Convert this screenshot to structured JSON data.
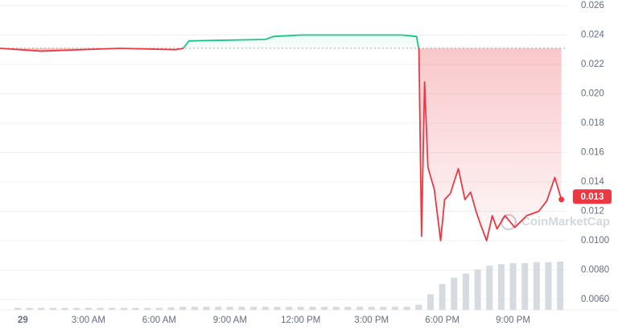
{
  "chart_data": {
    "type": "line",
    "x": [
      -0.75,
      0.99,
      4.36,
      6.68,
      7.02,
      7.26,
      10.5,
      10.84,
      12,
      16.3,
      16.91,
      17.01,
      17.12,
      17.25,
      17.39,
      17.66,
      17.93,
      18.1,
      18.34,
      18.68,
      18.96,
      19.2,
      19.43,
      19.6,
      19.88,
      20.12,
      20.32,
      20.66,
      21.07,
      21.58,
      22.09,
      22.43,
      22.77,
      23.05
    ],
    "values": [
      0.0231,
      0.0229,
      0.0231,
      0.023,
      0.0231,
      0.0236,
      0.0237,
      0.0239,
      0.024,
      0.024,
      0.0239,
      0.023,
      0.0103,
      0.0208,
      0.015,
      0.0135,
      0.01,
      0.0128,
      0.0132,
      0.0149,
      0.0128,
      0.0133,
      0.012,
      0.0112,
      0.01,
      0.0117,
      0.0108,
      0.0117,
      0.0109,
      0.0117,
      0.012,
      0.0127,
      0.0143,
      0.0128
    ],
    "baseline": 0.0231,
    "line_colors": {
      "above": "#16c784",
      "below": "#ea3943"
    },
    "current_price": 0.013,
    "watermark": "CoinMarketCap",
    "xlim": [
      -0.75,
      23.3
    ],
    "xticks": [
      {
        "value": 0,
        "label": "29"
      },
      {
        "value": 3,
        "label": "3:00 AM"
      },
      {
        "value": 6,
        "label": "6:00 AM"
      },
      {
        "value": 9,
        "label": "9:00 AM"
      },
      {
        "value": 12,
        "label": "12:00 PM"
      },
      {
        "value": 15,
        "label": "3:00 PM"
      },
      {
        "value": 18,
        "label": "6:00 PM"
      },
      {
        "value": 21,
        "label": "9:00 PM"
      }
    ],
    "ylim": [
      0.006,
      0.026
    ],
    "yticks": [
      {
        "value": 0.006,
        "label": "0.0060"
      },
      {
        "value": 0.008,
        "label": "0.0080"
      },
      {
        "value": 0.01,
        "label": "0.0100"
      },
      {
        "value": 0.012,
        "label": "0.012"
      },
      {
        "value": 0.014,
        "label": "0.014"
      },
      {
        "value": 0.016,
        "label": "0.016"
      },
      {
        "value": 0.018,
        "label": "0.018"
      },
      {
        "value": 0.02,
        "label": "0.020"
      },
      {
        "value": 0.022,
        "label": "0.022"
      },
      {
        "value": 0.024,
        "label": "0.024"
      },
      {
        "value": 0.026,
        "label": "0.026"
      }
    ],
    "grid": true,
    "volume": {
      "color": "#d6dae1",
      "x": [
        0,
        0.5,
        1,
        1.5,
        2,
        2.5,
        3,
        3.5,
        4,
        4.5,
        5,
        5.5,
        6,
        6.5,
        7,
        7.5,
        8,
        8.5,
        9,
        9.5,
        10,
        10.5,
        11,
        11.5,
        12,
        12.5,
        13,
        13.5,
        14,
        14.5,
        15,
        15.5,
        16,
        16.5,
        17,
        17.5,
        18,
        18.5,
        19,
        19.5,
        20,
        20.5,
        21,
        21.5,
        22,
        22.5,
        23
      ],
      "values": [
        4,
        4,
        4,
        4,
        4,
        4,
        4,
        4,
        4,
        4,
        4,
        4,
        4,
        5,
        6,
        6,
        6,
        6,
        6,
        6,
        6,
        6,
        6,
        6,
        6,
        6,
        6,
        6,
        6,
        6,
        6,
        6,
        6,
        6,
        10,
        30,
        50,
        62,
        70,
        78,
        85,
        88,
        90,
        90,
        92,
        92,
        93
      ]
    }
  }
}
